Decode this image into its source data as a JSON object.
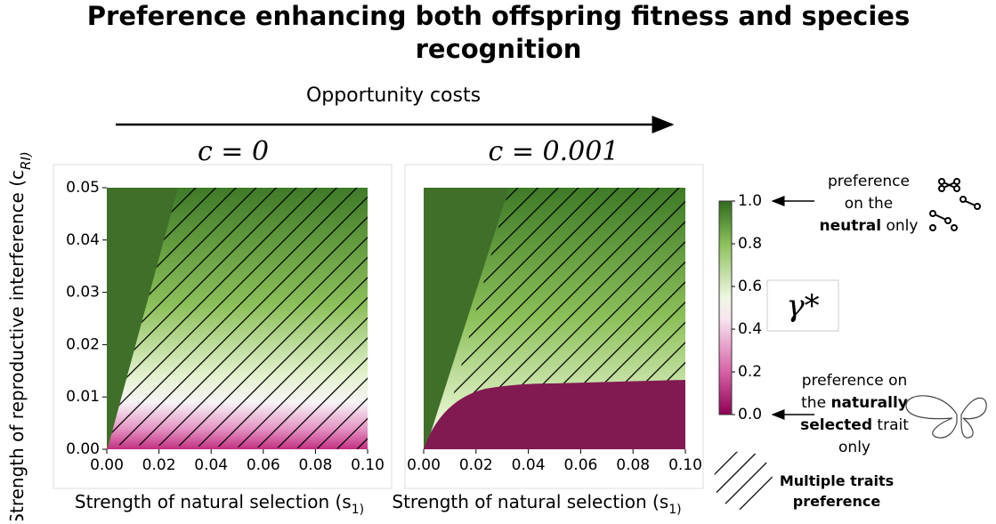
{
  "header": {
    "title": "Preference enhancing both offspring fitness and species recognition",
    "arrow_label": "Opportunity costs",
    "y_label": "Strength of reproductive interference (c_RI)"
  },
  "chart_data": [
    {
      "type": "heatmap",
      "title": "c = 0",
      "x_label": "Strength of natural selection (s_1)",
      "xlim": [
        0,
        0.1
      ],
      "ylim": [
        0,
        0.05
      ],
      "xticks": [
        {
          "value": 0,
          "label": "0.00"
        },
        {
          "value": 0.02,
          "label": "0.02"
        },
        {
          "value": 0.04,
          "label": "0.04"
        },
        {
          "value": 0.06,
          "label": "0.06"
        },
        {
          "value": 0.08,
          "label": "0.08"
        },
        {
          "value": 0.1,
          "label": "0.10"
        }
      ],
      "yticks": [
        {
          "value": 0,
          "label": "0.00"
        },
        {
          "value": 0.01,
          "label": "0.01"
        },
        {
          "value": 0.02,
          "label": "0.02"
        },
        {
          "value": 0.03,
          "label": "0.03"
        },
        {
          "value": 0.04,
          "label": "0.04"
        },
        {
          "value": 0.05,
          "label": "0.05"
        }
      ]
    },
    {
      "type": "heatmap",
      "title": "c = 0.001",
      "x_label": "Strength of natural selection (s_1)",
      "xlim": [
        0,
        0.1
      ],
      "ylim": [
        0,
        0.05
      ],
      "xticks": [
        {
          "value": 0,
          "label": "0.00"
        },
        {
          "value": 0.02,
          "label": "0.02"
        },
        {
          "value": 0.04,
          "label": "0.04"
        },
        {
          "value": 0.06,
          "label": "0.06"
        },
        {
          "value": 0.08,
          "label": "0.08"
        },
        {
          "value": 0.1,
          "label": "0.10"
        }
      ]
    }
  ],
  "colorbar": {
    "label": "γ*",
    "lim": [
      0,
      1
    ],
    "ticks": [
      {
        "value": 0,
        "label": "0.0"
      },
      {
        "value": 0.2,
        "label": "0.2"
      },
      {
        "value": 0.4,
        "label": "0.4"
      },
      {
        "value": 0.6,
        "label": "0.6"
      },
      {
        "value": 0.8,
        "label": "0.8"
      },
      {
        "value": 1,
        "label": "1.0"
      }
    ]
  },
  "annotations": {
    "top": [
      [
        "preference"
      ],
      [
        "on the"
      ],
      [
        "neutral",
        " only"
      ]
    ],
    "bottom": [
      [
        "preference on"
      ],
      [
        "the ",
        "naturally"
      ],
      [
        "selected",
        " trait"
      ],
      [
        "only"
      ]
    ],
    "hatch": [
      "Multiple traits",
      "preference"
    ]
  }
}
